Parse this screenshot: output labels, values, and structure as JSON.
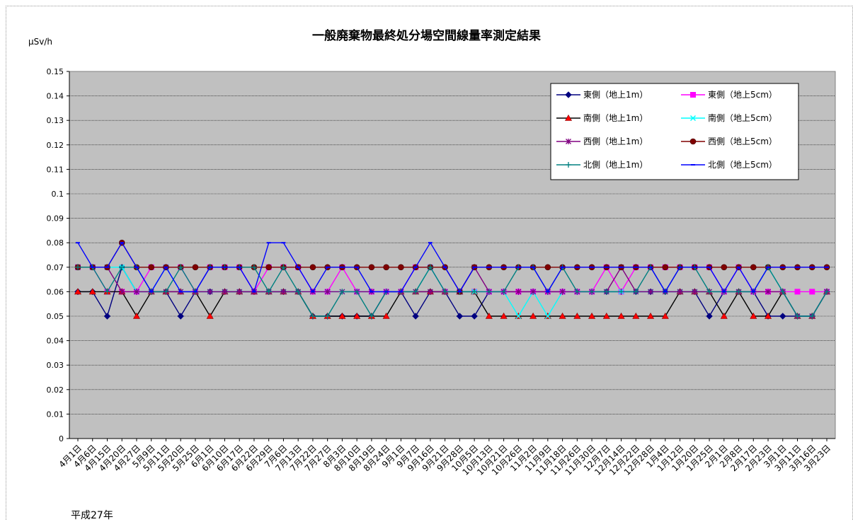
{
  "chart_data": {
    "type": "line",
    "title": "一般廃棄物最終処分場空間線量率測定結果",
    "ylabel": "μSv/h",
    "footer": "平成27年",
    "ylim": [
      0,
      0.15
    ],
    "y_ticks": [
      "0",
      "0.01",
      "0.02",
      "0.03",
      "0.04",
      "0.05",
      "0.06",
      "0.07",
      "0.08",
      "0.09",
      "0.1",
      "0.11",
      "0.12",
      "0.13",
      "0.14",
      "0.15"
    ],
    "grid": true,
    "legend_position": "top-right",
    "categories": [
      "4月1日",
      "4月6日",
      "4月15日",
      "4月20日",
      "4月27日",
      "5月9日",
      "5月11日",
      "5月20日",
      "5月25日",
      "6月1日",
      "6月10日",
      "6月17日",
      "6月22日",
      "6月29日",
      "7月6日",
      "7月13日",
      "7月22日",
      "7月27日",
      "8月3日",
      "8月10日",
      "8月19日",
      "8月24日",
      "9月1日",
      "9月7日",
      "9月16日",
      "9月21日",
      "9月28日",
      "10月5日",
      "10月13日",
      "10月21日",
      "10月26日",
      "11月2日",
      "11月9日",
      "11月18日",
      "11月26日",
      "11月30日",
      "12月7日",
      "12月14日",
      "12月22日",
      "12月28日",
      "1月4日",
      "1月12日",
      "1月20日",
      "1月25日",
      "2月1日",
      "2月8日",
      "2月17日",
      "2月23日",
      "3月1日",
      "3月11日",
      "3月16日",
      "3月23日"
    ],
    "series": [
      {
        "name": "東側（地上1m）",
        "color": "#000080",
        "marker": "diamond",
        "values": [
          0.06,
          0.06,
          0.05,
          0.07,
          0.06,
          0.06,
          0.06,
          0.05,
          0.06,
          0.06,
          0.06,
          0.06,
          0.06,
          0.06,
          0.06,
          0.06,
          0.05,
          0.05,
          0.05,
          0.05,
          0.05,
          0.06,
          0.06,
          0.05,
          0.06,
          0.06,
          0.05,
          0.05,
          0.06,
          0.06,
          0.06,
          0.06,
          0.06,
          0.06,
          0.06,
          0.06,
          0.06,
          0.06,
          0.06,
          0.06,
          0.06,
          0.06,
          0.06,
          0.05,
          0.06,
          0.06,
          0.06,
          0.05,
          0.05,
          0.05,
          0.05,
          0.06
        ]
      },
      {
        "name": "東側（地上5cm）",
        "color": "#FF00FF",
        "marker": "square",
        "values": [
          0.07,
          0.07,
          0.06,
          0.06,
          0.06,
          0.07,
          0.07,
          0.07,
          0.06,
          0.07,
          0.07,
          0.07,
          0.06,
          0.07,
          0.07,
          0.07,
          0.06,
          0.06,
          0.07,
          0.06,
          0.06,
          0.06,
          0.06,
          0.07,
          0.07,
          0.06,
          0.06,
          0.06,
          0.06,
          0.06,
          0.06,
          0.06,
          0.06,
          0.06,
          0.06,
          0.06,
          0.07,
          0.06,
          0.07,
          0.07,
          0.07,
          0.07,
          0.07,
          0.07,
          0.06,
          0.07,
          0.06,
          0.06,
          0.06,
          0.06,
          0.06,
          0.06
        ]
      },
      {
        "name": "南側（地上1m）",
        "color": "#000000",
        "marker": "triangle",
        "markerColor": "#FF0000",
        "values": [
          0.06,
          0.06,
          0.06,
          0.06,
          0.05,
          0.06,
          0.06,
          0.06,
          0.06,
          0.05,
          0.06,
          0.06,
          0.06,
          0.06,
          0.06,
          0.06,
          0.05,
          0.05,
          0.05,
          0.05,
          0.05,
          0.05,
          0.06,
          0.06,
          0.06,
          0.06,
          0.06,
          0.06,
          0.05,
          0.05,
          0.05,
          0.05,
          0.05,
          0.05,
          0.05,
          0.05,
          0.05,
          0.05,
          0.05,
          0.05,
          0.05,
          0.06,
          0.06,
          0.06,
          0.05,
          0.06,
          0.05,
          0.05,
          0.06,
          0.05,
          0.05,
          0.06
        ]
      },
      {
        "name": "南側（地上5cm）",
        "color": "#00FFFF",
        "marker": "x",
        "values": [
          0.07,
          0.07,
          0.07,
          0.07,
          0.06,
          0.06,
          0.07,
          0.06,
          0.06,
          0.06,
          0.06,
          0.06,
          0.06,
          0.06,
          0.06,
          0.06,
          0.06,
          0.06,
          0.06,
          0.06,
          0.06,
          0.06,
          0.06,
          0.06,
          0.07,
          0.06,
          0.06,
          0.06,
          0.06,
          0.06,
          0.05,
          0.06,
          0.05,
          0.06,
          0.06,
          0.06,
          0.06,
          0.06,
          0.06,
          0.06,
          0.06,
          0.06,
          0.06,
          0.06,
          0.06,
          0.06,
          0.06,
          0.07,
          0.06,
          0.05,
          0.05,
          0.06
        ]
      },
      {
        "name": "西側（地上1m）",
        "color": "#800080",
        "marker": "star",
        "values": [
          0.07,
          0.07,
          0.07,
          0.06,
          0.06,
          0.06,
          0.06,
          0.06,
          0.06,
          0.06,
          0.06,
          0.06,
          0.06,
          0.06,
          0.06,
          0.06,
          0.06,
          0.06,
          0.06,
          0.06,
          0.06,
          0.06,
          0.06,
          0.06,
          0.06,
          0.06,
          0.06,
          0.07,
          0.06,
          0.06,
          0.06,
          0.06,
          0.06,
          0.06,
          0.06,
          0.06,
          0.06,
          0.07,
          0.06,
          0.06,
          0.06,
          0.06,
          0.06,
          0.06,
          0.06,
          0.06,
          0.06,
          0.06,
          0.06,
          0.05,
          0.05,
          0.06
        ]
      },
      {
        "name": "西側（地上5cm）",
        "color": "#800000",
        "marker": "circle",
        "values": [
          0.07,
          0.07,
          0.07,
          0.08,
          0.07,
          0.07,
          0.07,
          0.07,
          0.07,
          0.07,
          0.07,
          0.07,
          0.07,
          0.07,
          0.07,
          0.07,
          0.07,
          0.07,
          0.07,
          0.07,
          0.07,
          0.07,
          0.07,
          0.07,
          0.07,
          0.07,
          0.06,
          0.07,
          0.07,
          0.07,
          0.07,
          0.07,
          0.07,
          0.07,
          0.07,
          0.07,
          0.07,
          0.07,
          0.07,
          0.07,
          0.07,
          0.07,
          0.07,
          0.07,
          0.07,
          0.07,
          0.07,
          0.07,
          0.07,
          0.07,
          0.07,
          0.07
        ]
      },
      {
        "name": "北側（地上1m）",
        "color": "#008080",
        "marker": "plus",
        "values": [
          0.07,
          0.07,
          0.06,
          0.07,
          0.07,
          0.06,
          0.06,
          0.07,
          0.06,
          0.07,
          0.07,
          0.07,
          0.07,
          0.06,
          0.07,
          0.06,
          0.05,
          0.05,
          0.06,
          0.06,
          0.05,
          0.06,
          0.06,
          0.06,
          0.07,
          0.06,
          0.06,
          0.06,
          0.06,
          0.06,
          0.07,
          0.07,
          0.06,
          0.07,
          0.06,
          0.06,
          0.06,
          0.06,
          0.06,
          0.07,
          0.06,
          0.07,
          0.07,
          0.06,
          0.06,
          0.06,
          0.06,
          0.07,
          0.06,
          0.05,
          0.05,
          0.06
        ]
      },
      {
        "name": "北側（地上5cm）",
        "color": "#0000FF",
        "marker": "dash",
        "values": [
          0.08,
          0.07,
          0.07,
          0.08,
          0.07,
          0.06,
          0.07,
          0.06,
          0.06,
          0.07,
          0.07,
          0.07,
          0.06,
          0.08,
          0.08,
          0.07,
          0.06,
          0.07,
          0.07,
          0.07,
          0.06,
          0.06,
          0.06,
          0.07,
          0.08,
          0.07,
          0.06,
          0.07,
          0.07,
          0.07,
          0.07,
          0.07,
          0.06,
          0.07,
          0.07,
          0.07,
          0.07,
          0.07,
          0.07,
          0.07,
          0.06,
          0.07,
          0.07,
          0.07,
          0.06,
          0.07,
          0.06,
          0.07,
          0.07,
          0.07,
          0.07,
          0.07
        ]
      }
    ]
  }
}
